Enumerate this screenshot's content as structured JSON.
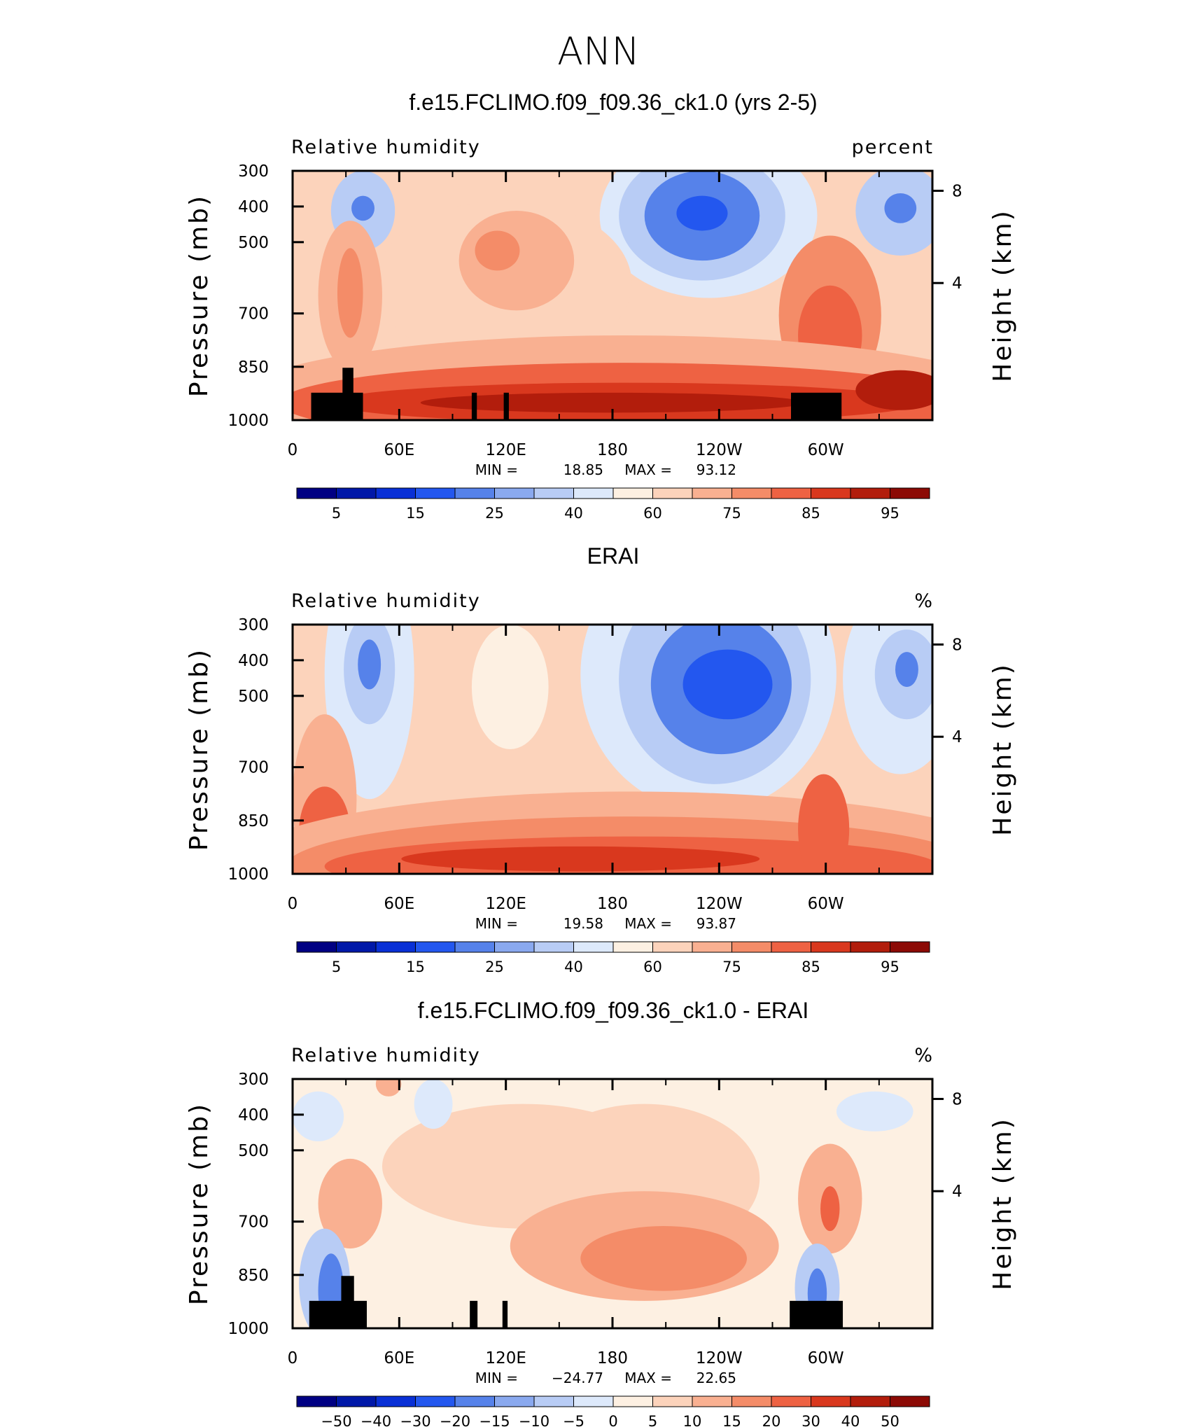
{
  "main_title": "ANN",
  "chart_data": [
    {
      "type": "heatmap",
      "title": "f.e15.FCLIMO.f09_f09.36_ck1.0 (yrs 2-5)",
      "variable": "Relative humidity",
      "units": "percent",
      "ylabel": "Pressure (mb)",
      "ylabel_right": "Height (km)",
      "x_ticks": [
        "0",
        "60E",
        "120E",
        "180",
        "120W",
        "60W"
      ],
      "y_ticks": [
        "300",
        "400",
        "500",
        "700",
        "850",
        "1000"
      ],
      "height_ticks": [
        "8",
        "4"
      ],
      "min_label": "MIN =",
      "min_value": "18.85",
      "max_label": "MAX =",
      "max_value": "93.12",
      "colorbar_labels": [
        "5",
        "15",
        "25",
        "40",
        "60",
        "75",
        "85",
        "95"
      ],
      "colorbar_colors": [
        "#000083",
        "#0018a8",
        "#0930d6",
        "#2357ef",
        "#5682ea",
        "#8aa9ef",
        "#b8ccf5",
        "#dde9fb",
        "#fdf0e2",
        "#fcd3bb",
        "#f9b091",
        "#f48c68",
        "#ee6243",
        "#d9381e",
        "#b21d0c",
        "#8c0a05"
      ],
      "fields": [
        {
          "cx": 0.11,
          "cy": 0.16,
          "rx": 0.05,
          "ry": 0.16,
          "color": "#b8ccf5"
        },
        {
          "cx": 0.11,
          "cy": 0.15,
          "rx": 0.018,
          "ry": 0.05,
          "color": "#5682ea"
        },
        {
          "cx": 0.65,
          "cy": 0.18,
          "rx": 0.17,
          "ry": 0.33,
          "color": "#dde9fb"
        },
        {
          "cx": 0.64,
          "cy": 0.18,
          "rx": 0.13,
          "ry": 0.26,
          "color": "#b8ccf5"
        },
        {
          "cx": 0.64,
          "cy": 0.18,
          "rx": 0.09,
          "ry": 0.18,
          "color": "#5682ea"
        },
        {
          "cx": 0.64,
          "cy": 0.17,
          "rx": 0.04,
          "ry": 0.07,
          "color": "#2357ef"
        },
        {
          "cx": 0.95,
          "cy": 0.16,
          "rx": 0.07,
          "ry": 0.18,
          "color": "#b8ccf5"
        },
        {
          "cx": 0.95,
          "cy": 0.15,
          "rx": 0.025,
          "ry": 0.06,
          "color": "#5682ea"
        },
        {
          "cx": 0.33,
          "cy": 0.45,
          "rx": 0.2,
          "ry": 0.33,
          "color": "#fcd3bb"
        },
        {
          "cx": 0.35,
          "cy": 0.36,
          "rx": 0.09,
          "ry": 0.2,
          "color": "#f9b091"
        },
        {
          "cx": 0.32,
          "cy": 0.32,
          "rx": 0.035,
          "ry": 0.08,
          "color": "#f48c68"
        },
        {
          "cx": 0.09,
          "cy": 0.5,
          "rx": 0.05,
          "ry": 0.3,
          "color": "#f9b091"
        },
        {
          "cx": 0.09,
          "cy": 0.49,
          "rx": 0.02,
          "ry": 0.18,
          "color": "#f48c68"
        },
        {
          "cx": 0.84,
          "cy": 0.58,
          "rx": 0.08,
          "ry": 0.32,
          "color": "#f48c68"
        },
        {
          "cx": 0.84,
          "cy": 0.66,
          "rx": 0.05,
          "ry": 0.2,
          "color": "#ee6243"
        },
        {
          "cx": 0.52,
          "cy": 0.93,
          "rx": 0.62,
          "ry": 0.27,
          "color": "#f9b091"
        },
        {
          "cx": 0.52,
          "cy": 0.93,
          "rx": 0.54,
          "ry": 0.16,
          "color": "#ee6243"
        },
        {
          "cx": 0.52,
          "cy": 0.93,
          "rx": 0.46,
          "ry": 0.08,
          "color": "#d9381e"
        },
        {
          "cx": 0.5,
          "cy": 0.93,
          "rx": 0.3,
          "ry": 0.04,
          "color": "#b21d0c"
        },
        {
          "cx": 0.95,
          "cy": 0.88,
          "rx": 0.07,
          "ry": 0.08,
          "color": "#b21d0c"
        }
      ]
    },
    {
      "type": "heatmap",
      "title": "ERAI",
      "variable": "Relative humidity",
      "units": "%",
      "ylabel": "Pressure (mb)",
      "ylabel_right": "Height (km)",
      "x_ticks": [
        "0",
        "60E",
        "120E",
        "180",
        "120W",
        "60W"
      ],
      "y_ticks": [
        "300",
        "400",
        "500",
        "700",
        "850",
        "1000"
      ],
      "height_ticks": [
        "8",
        "4"
      ],
      "min_label": "MIN =",
      "min_value": "19.58",
      "max_label": "MAX =",
      "max_value": "93.87",
      "colorbar_labels": [
        "5",
        "15",
        "25",
        "40",
        "60",
        "75",
        "85",
        "95"
      ],
      "colorbar_colors": [
        "#000083",
        "#0018a8",
        "#0930d6",
        "#2357ef",
        "#5682ea",
        "#8aa9ef",
        "#b8ccf5",
        "#dde9fb",
        "#fdf0e2",
        "#fcd3bb",
        "#f9b091",
        "#f48c68",
        "#ee6243",
        "#d9381e",
        "#b21d0c",
        "#8c0a05"
      ],
      "fields": [
        {
          "cx": 0.12,
          "cy": 0.2,
          "rx": 0.07,
          "ry": 0.5,
          "color": "#dde9fb"
        },
        {
          "cx": 0.12,
          "cy": 0.18,
          "rx": 0.04,
          "ry": 0.22,
          "color": "#b8ccf5"
        },
        {
          "cx": 0.12,
          "cy": 0.16,
          "rx": 0.018,
          "ry": 0.1,
          "color": "#5682ea"
        },
        {
          "cx": 0.65,
          "cy": 0.2,
          "rx": 0.2,
          "ry": 0.55,
          "color": "#dde9fb"
        },
        {
          "cx": 0.66,
          "cy": 0.22,
          "rx": 0.15,
          "ry": 0.42,
          "color": "#b8ccf5"
        },
        {
          "cx": 0.67,
          "cy": 0.24,
          "rx": 0.11,
          "ry": 0.28,
          "color": "#5682ea"
        },
        {
          "cx": 0.68,
          "cy": 0.24,
          "rx": 0.07,
          "ry": 0.14,
          "color": "#2357ef"
        },
        {
          "cx": 0.95,
          "cy": 0.22,
          "rx": 0.09,
          "ry": 0.38,
          "color": "#dde9fb"
        },
        {
          "cx": 0.96,
          "cy": 0.2,
          "rx": 0.05,
          "ry": 0.18,
          "color": "#b8ccf5"
        },
        {
          "cx": 0.96,
          "cy": 0.18,
          "rx": 0.018,
          "ry": 0.07,
          "color": "#5682ea"
        },
        {
          "cx": 0.34,
          "cy": 0.25,
          "rx": 0.06,
          "ry": 0.25,
          "color": "#fdf0e2"
        },
        {
          "cx": 0.05,
          "cy": 0.7,
          "rx": 0.05,
          "ry": 0.34,
          "color": "#f9b091"
        },
        {
          "cx": 0.05,
          "cy": 0.83,
          "rx": 0.04,
          "ry": 0.18,
          "color": "#ee6243"
        },
        {
          "cx": 0.53,
          "cy": 0.97,
          "rx": 0.62,
          "ry": 0.3,
          "color": "#f9b091"
        },
        {
          "cx": 0.53,
          "cy": 0.97,
          "rx": 0.54,
          "ry": 0.2,
          "color": "#f48c68"
        },
        {
          "cx": 0.53,
          "cy": 0.97,
          "rx": 0.48,
          "ry": 0.12,
          "color": "#ee6243"
        },
        {
          "cx": 0.45,
          "cy": 0.94,
          "rx": 0.28,
          "ry": 0.05,
          "color": "#d9381e"
        },
        {
          "cx": 0.83,
          "cy": 0.82,
          "rx": 0.04,
          "ry": 0.22,
          "color": "#ee6243"
        }
      ]
    },
    {
      "type": "heatmap",
      "title": "f.e15.FCLIMO.f09_f09.36_ck1.0 - ERAI",
      "variable": "Relative humidity",
      "units": "%",
      "ylabel": "Pressure (mb)",
      "ylabel_right": "Height (km)",
      "x_ticks": [
        "0",
        "60E",
        "120E",
        "180",
        "120W",
        "60W"
      ],
      "y_ticks": [
        "300",
        "400",
        "500",
        "700",
        "850",
        "1000"
      ],
      "height_ticks": [
        "8",
        "4"
      ],
      "min_label": "MIN =",
      "min_value": "−24.77",
      "max_label": "MAX =",
      "max_value": "22.65",
      "colorbar_labels": [
        "−50",
        "−40",
        "−30",
        "−20",
        "−15",
        "−10",
        "−5",
        "0",
        "5",
        "10",
        "15",
        "20",
        "30",
        "40",
        "50"
      ],
      "colorbar_colors": [
        "#000083",
        "#0018a8",
        "#0930d6",
        "#2357ef",
        "#5682ea",
        "#8aa9ef",
        "#b8ccf5",
        "#dde9fb",
        "#fdf0e2",
        "#fcd3bb",
        "#f9b091",
        "#f48c68",
        "#ee6243",
        "#d9381e",
        "#b21d0c",
        "#8c0a05"
      ],
      "fields": [
        {
          "cx": 0.5,
          "cy": 0.45,
          "rx": 0.5,
          "ry": 0.45,
          "color": "#fdf0e2"
        },
        {
          "cx": 0.36,
          "cy": 0.35,
          "rx": 0.22,
          "ry": 0.25,
          "color": "#fcd3bb"
        },
        {
          "cx": 0.55,
          "cy": 0.4,
          "rx": 0.18,
          "ry": 0.3,
          "color": "#fcd3bb"
        },
        {
          "cx": 0.55,
          "cy": 0.67,
          "rx": 0.21,
          "ry": 0.22,
          "color": "#f9b091"
        },
        {
          "cx": 0.58,
          "cy": 0.72,
          "rx": 0.13,
          "ry": 0.13,
          "color": "#f48c68"
        },
        {
          "cx": 0.09,
          "cy": 0.5,
          "rx": 0.05,
          "ry": 0.18,
          "color": "#f9b091"
        },
        {
          "cx": 0.84,
          "cy": 0.48,
          "rx": 0.05,
          "ry": 0.22,
          "color": "#f9b091"
        },
        {
          "cx": 0.84,
          "cy": 0.52,
          "rx": 0.015,
          "ry": 0.09,
          "color": "#ee6243"
        },
        {
          "cx": 0.05,
          "cy": 0.82,
          "rx": 0.04,
          "ry": 0.22,
          "color": "#b8ccf5"
        },
        {
          "cx": 0.06,
          "cy": 0.85,
          "rx": 0.02,
          "ry": 0.15,
          "color": "#5682ea"
        },
        {
          "cx": 0.82,
          "cy": 0.84,
          "rx": 0.035,
          "ry": 0.18,
          "color": "#b8ccf5"
        },
        {
          "cx": 0.82,
          "cy": 0.86,
          "rx": 0.015,
          "ry": 0.1,
          "color": "#5682ea"
        },
        {
          "cx": 0.91,
          "cy": 0.13,
          "rx": 0.06,
          "ry": 0.08,
          "color": "#dde9fb"
        },
        {
          "cx": 0.22,
          "cy": 0.1,
          "rx": 0.03,
          "ry": 0.1,
          "color": "#dde9fb"
        },
        {
          "cx": 0.04,
          "cy": 0.15,
          "rx": 0.04,
          "ry": 0.1,
          "color": "#dde9fb"
        },
        {
          "cx": 0.15,
          "cy": 0.02,
          "rx": 0.02,
          "ry": 0.05,
          "color": "#f9b091"
        }
      ]
    }
  ]
}
